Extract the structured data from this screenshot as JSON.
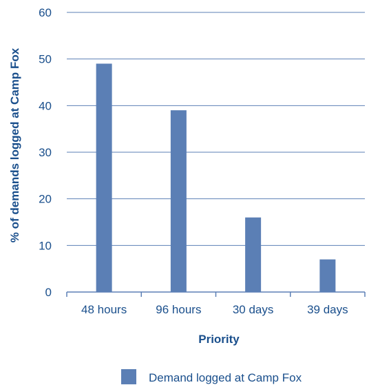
{
  "chart_data": {
    "type": "bar",
    "categories": [
      "48 hours",
      "96 hours",
      "30 days",
      "39 days"
    ],
    "series": [
      {
        "name": "Demand logged at Camp Fox",
        "values": [
          49,
          39,
          16,
          7
        ]
      }
    ],
    "xlabel": "Priority",
    "ylabel": "% of demands logged at Camp Fox",
    "ylim": [
      0,
      60
    ],
    "yticks": [
      0,
      10,
      20,
      30,
      40,
      50,
      60
    ],
    "grid": true,
    "legend_position": "bottom",
    "colors": {
      "bar": "#5b7fb5",
      "grid": "#5b7fb5",
      "text": "#1a4f8c"
    }
  }
}
